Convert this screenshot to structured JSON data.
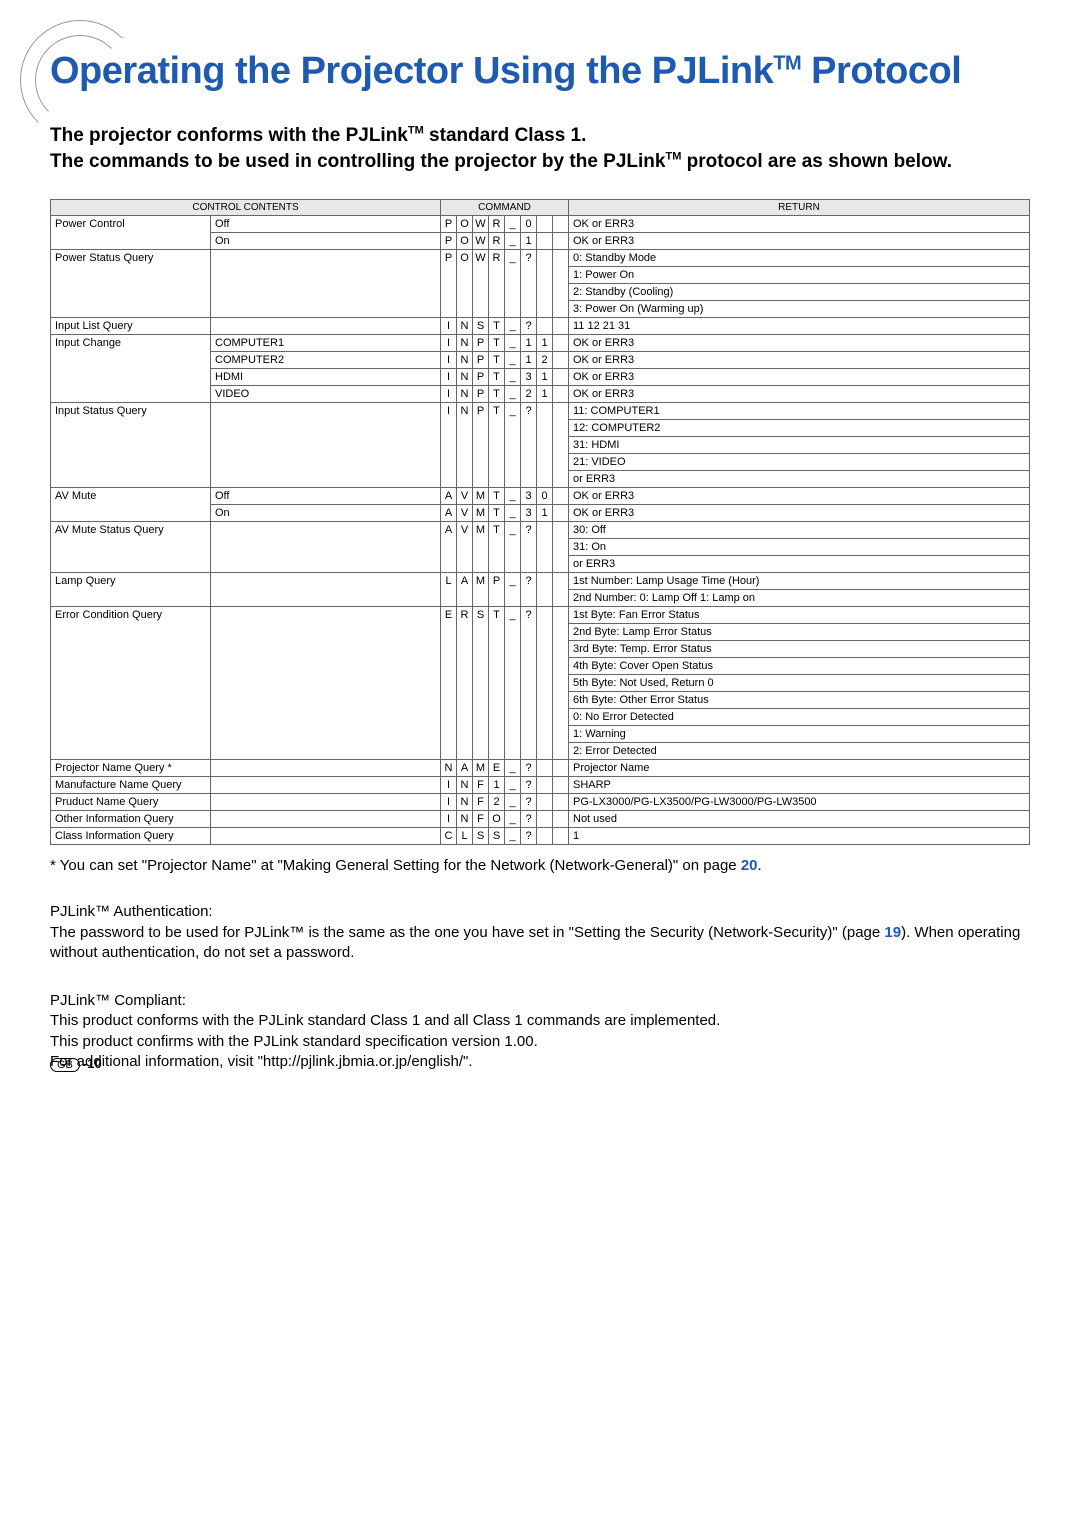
{
  "title_parts": [
    "Operating the Projector Using the PJLink",
    "TM",
    " Protocol"
  ],
  "intro_parts": [
    "The projector conforms with the PJLink",
    "TM",
    " standard Class 1.\nThe commands to be used in controlling the projector by the PJLink",
    "TM",
    " protocol are as shown below."
  ],
  "headers": {
    "control": "CONTROL CONTENTS",
    "command": "COMMAND",
    "return": "RETURN"
  },
  "rows": [
    {
      "control": "Power Control",
      "param": "Off",
      "cmd": [
        "P",
        "O",
        "W",
        "R",
        "_",
        "0",
        "",
        ""
      ],
      "ret": [
        "OK or ERR3"
      ]
    },
    {
      "control": "",
      "param": "On",
      "cmd": [
        "P",
        "O",
        "W",
        "R",
        "_",
        "1",
        "",
        ""
      ],
      "ret": [
        "OK or ERR3"
      ]
    },
    {
      "control": "Power Status Query",
      "param": "",
      "cmd": [
        "P",
        "O",
        "W",
        "R",
        "_",
        "?",
        "",
        ""
      ],
      "ret": [
        "0: Standby Mode",
        "1: Power On",
        "2: Standby (Cooling)",
        "3: Power On (Warming up)"
      ]
    },
    {
      "control": "Input List Query",
      "param": "",
      "cmd": [
        "I",
        "N",
        "S",
        "T",
        "_",
        "?",
        "",
        ""
      ],
      "ret": [
        "11 12 21 31"
      ]
    },
    {
      "control": "Input Change",
      "param": "COMPUTER1",
      "cmd": [
        "I",
        "N",
        "P",
        "T",
        "_",
        "1",
        "1",
        ""
      ],
      "ret": [
        "OK or ERR3"
      ]
    },
    {
      "control": "",
      "param": "COMPUTER2",
      "cmd": [
        "I",
        "N",
        "P",
        "T",
        "_",
        "1",
        "2",
        ""
      ],
      "ret": [
        "OK or ERR3"
      ]
    },
    {
      "control": "",
      "param": "HDMI",
      "cmd": [
        "I",
        "N",
        "P",
        "T",
        "_",
        "3",
        "1",
        ""
      ],
      "ret": [
        "OK or ERR3"
      ]
    },
    {
      "control": "",
      "param": "VIDEO",
      "cmd": [
        "I",
        "N",
        "P",
        "T",
        "_",
        "2",
        "1",
        ""
      ],
      "ret": [
        "OK or ERR3"
      ]
    },
    {
      "control": "Input Status Query",
      "param": "",
      "cmd": [
        "I",
        "N",
        "P",
        "T",
        "_",
        "?",
        "",
        ""
      ],
      "ret": [
        "11: COMPUTER1",
        "12: COMPUTER2",
        "31: HDMI",
        "21: VIDEO",
        "or ERR3"
      ]
    },
    {
      "control": "AV Mute",
      "param": "Off",
      "cmd": [
        "A",
        "V",
        "M",
        "T",
        "_",
        "3",
        "0",
        ""
      ],
      "ret": [
        "OK or ERR3"
      ]
    },
    {
      "control": "",
      "param": "On",
      "cmd": [
        "A",
        "V",
        "M",
        "T",
        "_",
        "3",
        "1",
        ""
      ],
      "ret": [
        "OK or ERR3"
      ]
    },
    {
      "control": "AV Mute Status Query",
      "param": "",
      "cmd": [
        "A",
        "V",
        "M",
        "T",
        "_",
        "?",
        "",
        ""
      ],
      "ret": [
        "30: Off",
        "31: On",
        "or ERR3"
      ]
    },
    {
      "control": "Lamp Query",
      "param": "",
      "cmd": [
        "L",
        "A",
        "M",
        "P",
        "_",
        "?",
        "",
        ""
      ],
      "ret": [
        "1st Number: Lamp Usage Time (Hour)",
        "2nd Number: 0: Lamp Off  1: Lamp on"
      ]
    },
    {
      "control": "Error Condition Query",
      "param": "",
      "cmd": [
        "E",
        "R",
        "S",
        "T",
        "_",
        "?",
        "",
        ""
      ],
      "ret": [
        "1st Byte: Fan Error Status",
        "2nd Byte: Lamp Error Status",
        "3rd Byte: Temp. Error Status",
        "4th Byte: Cover Open Status",
        "5th Byte: Not Used, Return 0",
        "6th Byte: Other Error Status",
        "0: No Error Detected",
        "1: Warning",
        "2: Error Detected"
      ]
    },
    {
      "control": "Projector Name Query *",
      "param": "",
      "cmd": [
        "N",
        "A",
        "M",
        "E",
        "_",
        "?",
        "",
        ""
      ],
      "ret": [
        "Projector Name"
      ]
    },
    {
      "control": "Manufacture Name Query",
      "param": "",
      "cmd": [
        "I",
        "N",
        "F",
        "1",
        "_",
        "?",
        "",
        ""
      ],
      "ret": [
        "SHARP"
      ]
    },
    {
      "control": "Pruduct Name Query",
      "param": "",
      "cmd": [
        "I",
        "N",
        "F",
        "2",
        "_",
        "?",
        "",
        ""
      ],
      "ret": [
        "PG-LX3000/PG-LX3500/PG-LW3000/PG-LW3500"
      ]
    },
    {
      "control": "Other Information Query",
      "param": "",
      "cmd": [
        "I",
        "N",
        "F",
        "O",
        "_",
        "?",
        "",
        ""
      ],
      "ret": [
        "Not used"
      ]
    },
    {
      "control": "Class Information Query",
      "param": "",
      "cmd": [
        "C",
        "L",
        "S",
        "S",
        "_",
        "?",
        "",
        ""
      ],
      "ret": [
        "1"
      ]
    }
  ],
  "footnote": "* You can set \"Projector Name\" at \"Making General Setting for the Network (Network-General)\" on page ",
  "footnote_page": "20",
  "auth_heading": "PJLink™ Authentication:",
  "auth_body1": "The password to be used for PJLink™ is the same as the one you have set in \"Setting the Security (Network-Security)\" (page ",
  "auth_page": "19",
  "auth_body2": "). When operating without authentication, do not set a password.",
  "compliant_heading": "PJLink™ Compliant:",
  "compliant_body": "This product conforms with the PJLink standard Class 1 and all Class 1 commands are implemented.\nThis product confirms with the PJLink standard specification version 1.00.\nFor additional information, visit \"http://pjlink.jbmia.or.jp/english/\".",
  "footer_gb": "GB",
  "footer_page": "-10"
}
